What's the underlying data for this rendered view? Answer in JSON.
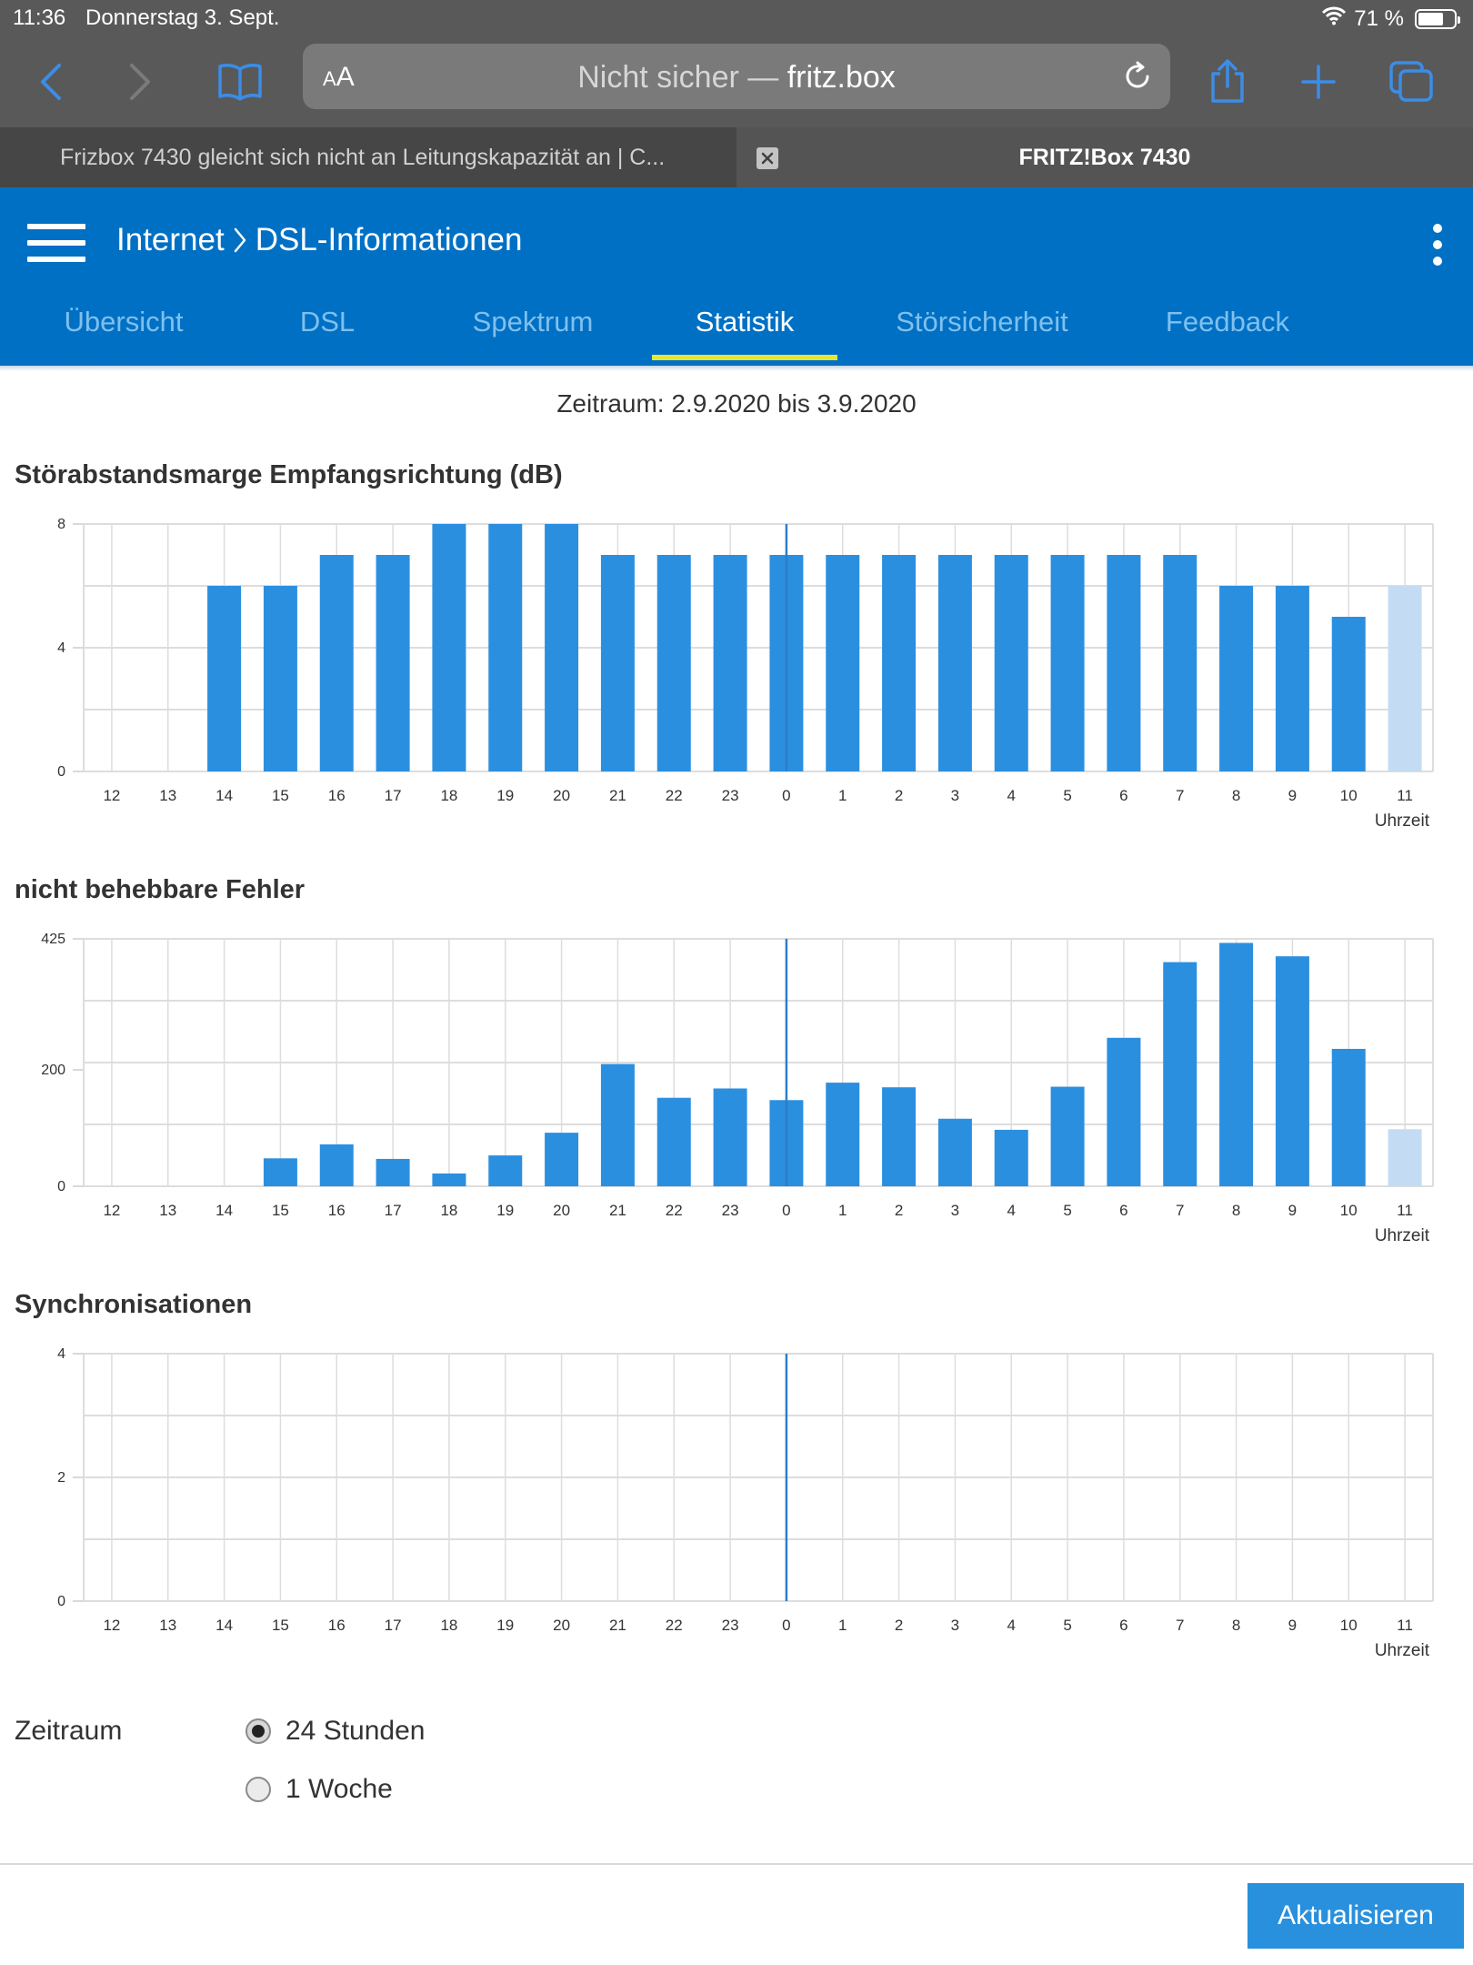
{
  "status_bar": {
    "time": "11:36",
    "date": "Donnerstag 3. Sept.",
    "battery": "71 %",
    "battery_level": 0.71
  },
  "browser": {
    "reader_label_small": "A",
    "reader_label": "A",
    "url_prefix": "Nicht sicher —",
    "url_host": "fritz.box",
    "tabs": [
      {
        "title": "Frizbox 7430 gleicht sich nicht an Leitungskapazität an | C..."
      },
      {
        "title": "FRITZ!Box 7430"
      }
    ]
  },
  "header": {
    "crumb_root": "Internet",
    "crumb_page": "DSL-Informationen",
    "tabs": [
      {
        "label": "Übersicht"
      },
      {
        "label": "DSL"
      },
      {
        "label": "Spektrum"
      },
      {
        "label": "Statistik"
      },
      {
        "label": "Störsicherheit"
      },
      {
        "label": "Feedback"
      }
    ],
    "active_tab": "Statistik"
  },
  "period_text": "Zeitraum: 2.9.2020 bis 3.9.2020",
  "chart_data": [
    {
      "type": "bar",
      "title": "Störabstandsmarge Empfangsrichtung (dB)",
      "xlabel": "Uhrzeit",
      "categories": [
        "12",
        "13",
        "14",
        "15",
        "16",
        "17",
        "18",
        "19",
        "20",
        "21",
        "22",
        "23",
        "0",
        "1",
        "2",
        "3",
        "4",
        "5",
        "6",
        "7",
        "8",
        "9",
        "10",
        "11"
      ],
      "values": [
        null,
        null,
        6,
        6,
        7,
        7,
        8,
        8,
        8,
        7,
        7,
        7,
        7,
        7,
        7,
        7,
        7,
        7,
        7,
        7,
        6,
        6,
        5,
        6
      ],
      "current_category": "11",
      "yticks": [
        0,
        4,
        8
      ],
      "ylim": [
        0,
        8
      ],
      "grid": true
    },
    {
      "type": "bar",
      "title": "nicht behebbare Fehler",
      "xlabel": "Uhrzeit",
      "categories": [
        "12",
        "13",
        "14",
        "15",
        "16",
        "17",
        "18",
        "19",
        "20",
        "21",
        "22",
        "23",
        "0",
        "1",
        "2",
        "3",
        "4",
        "5",
        "6",
        "7",
        "8",
        "9",
        "10",
        "11"
      ],
      "values": [
        null,
        null,
        null,
        48,
        72,
        47,
        22,
        53,
        92,
        210,
        152,
        168,
        148,
        178,
        170,
        116,
        97,
        171,
        255,
        385,
        418,
        395,
        236,
        98
      ],
      "current_category": "11",
      "yticks": [
        0,
        200,
        425
      ],
      "ylim": [
        0,
        425
      ],
      "grid": true
    },
    {
      "type": "bar",
      "title": "Synchronisationen",
      "xlabel": "Uhrzeit",
      "categories": [
        "12",
        "13",
        "14",
        "15",
        "16",
        "17",
        "18",
        "19",
        "20",
        "21",
        "22",
        "23",
        "0",
        "1",
        "2",
        "3",
        "4",
        "5",
        "6",
        "7",
        "8",
        "9",
        "10",
        "11"
      ],
      "values": [
        null,
        null,
        null,
        null,
        null,
        null,
        null,
        null,
        null,
        null,
        null,
        null,
        null,
        null,
        null,
        null,
        null,
        null,
        null,
        null,
        null,
        null,
        null,
        null
      ],
      "current_category": "11",
      "yticks": [
        0,
        2,
        4
      ],
      "ylim": [
        0,
        4
      ],
      "grid": true
    }
  ],
  "colors": {
    "bar": "#2b8fe0",
    "bar_current": "#c3dcf3",
    "midnight_line": "#2b7ec8",
    "header_blue": "#0070c4",
    "tab_underline": "#e6e633"
  },
  "period_form": {
    "label": "Zeitraum",
    "options": [
      {
        "label": "24 Stunden",
        "checked": true
      },
      {
        "label": "1 Woche",
        "checked": false
      }
    ]
  },
  "update_button": "Aktualisieren"
}
